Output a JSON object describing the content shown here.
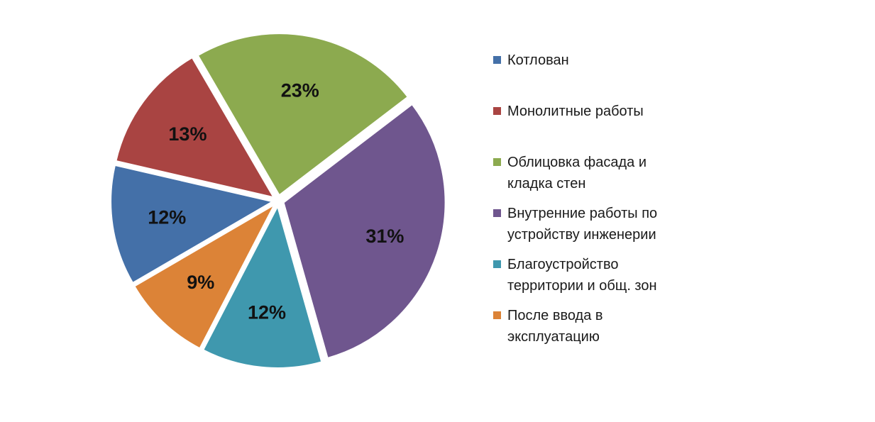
{
  "chart_data": {
    "type": "pie",
    "categories": [
      "Котлован",
      "Монолитные работы",
      "Облицовка фасада и кладка стен",
      "Внутренние работы по устройству инженерии",
      "Благоустройство территории и общ. зон",
      "После ввода в эксплуатацию"
    ],
    "values": [
      12,
      13,
      23,
      31,
      12,
      9
    ],
    "value_labels": [
      "12%",
      "13%",
      "23%",
      "31%",
      "12%",
      "9%"
    ],
    "colors": [
      "#4470A8",
      "#A94442",
      "#8CAA4F",
      "#6F568E",
      "#3F98AE",
      "#DC8337"
    ],
    "title": "",
    "legend": "right",
    "exploded": true
  },
  "legend": {
    "items": [
      {
        "label": "Котлован",
        "color": "#4470A8"
      },
      {
        "label": "Монолитные работы",
        "color": "#A94442"
      },
      {
        "label": "Облицовка фасада и\nкладка стен",
        "color": "#8CAA4F"
      },
      {
        "label": "Внутренние работы по\nустройству инженерии",
        "color": "#6F568E"
      },
      {
        "label": "Благоустройство\nтерритории и общ. зон",
        "color": "#3F98AE"
      },
      {
        "label": "После ввода в\nэксплуатацию",
        "color": "#DC8337"
      }
    ]
  }
}
